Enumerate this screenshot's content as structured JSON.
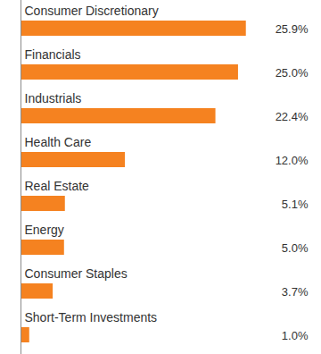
{
  "chart_data": {
    "type": "bar",
    "orientation": "horizontal",
    "categories": [
      "Consumer Discretionary",
      "Financials",
      "Industrials",
      "Health Care",
      "Real Estate",
      "Energy",
      "Consumer Staples",
      "Short-Term Investments"
    ],
    "values": [
      25.9,
      25.0,
      22.4,
      12.0,
      5.1,
      5.0,
      3.7,
      1.0
    ],
    "value_labels": [
      "25.9%",
      "25.0%",
      "22.4%",
      "12.0%",
      "5.1%",
      "5.0%",
      "3.7%",
      "1.0%"
    ],
    "color": "#f58220",
    "xlim": [
      0,
      33
    ],
    "data_labels": true,
    "tick_labels": false,
    "grid": false
  }
}
